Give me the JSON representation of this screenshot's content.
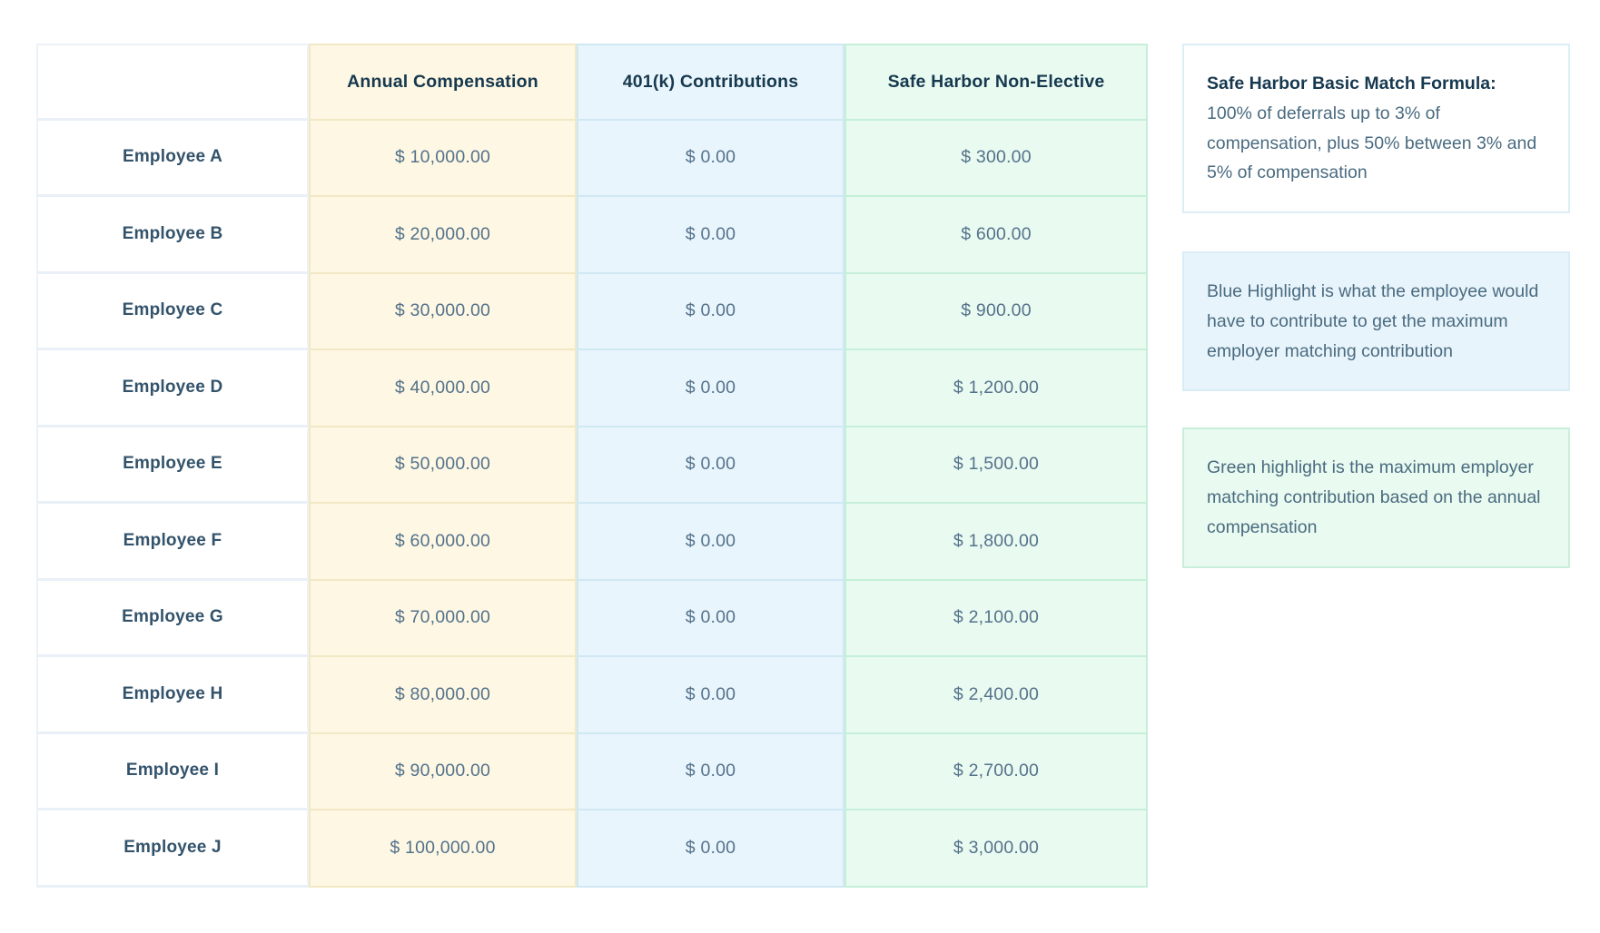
{
  "table": {
    "columns": [
      {
        "label": ""
      },
      {
        "label": "Annual Compensation"
      },
      {
        "label": "401(k) Contributions"
      },
      {
        "label": "Safe Harbor Non-Elective"
      }
    ],
    "rows": [
      {
        "name": "Employee A",
        "annual_compensation": "$ 10,000.00",
        "contributions_401k": "$ 0.00",
        "safe_harbor": "$ 300.00"
      },
      {
        "name": "Employee B",
        "annual_compensation": "$ 20,000.00",
        "contributions_401k": "$ 0.00",
        "safe_harbor": "$ 600.00"
      },
      {
        "name": "Employee C",
        "annual_compensation": "$ 30,000.00",
        "contributions_401k": "$ 0.00",
        "safe_harbor": "$ 900.00"
      },
      {
        "name": "Employee D",
        "annual_compensation": "$ 40,000.00",
        "contributions_401k": "$ 0.00",
        "safe_harbor": "$ 1,200.00"
      },
      {
        "name": "Employee E",
        "annual_compensation": "$ 50,000.00",
        "contributions_401k": "$ 0.00",
        "safe_harbor": "$ 1,500.00"
      },
      {
        "name": "Employee F",
        "annual_compensation": "$ 60,000.00",
        "contributions_401k": "$ 0.00",
        "safe_harbor": "$ 1,800.00"
      },
      {
        "name": "Employee G",
        "annual_compensation": "$ 70,000.00",
        "contributions_401k": "$ 0.00",
        "safe_harbor": "$ 2,100.00"
      },
      {
        "name": "Employee H",
        "annual_compensation": "$ 80,000.00",
        "contributions_401k": "$ 0.00",
        "safe_harbor": "$ 2,400.00"
      },
      {
        "name": "Employee I",
        "annual_compensation": "$ 90,000.00",
        "contributions_401k": "$ 0.00",
        "safe_harbor": "$ 2,700.00"
      },
      {
        "name": "Employee J",
        "annual_compensation": "$ 100,000.00",
        "contributions_401k": "$ 0.00",
        "safe_harbor": "$ 3,000.00"
      }
    ]
  },
  "panels": {
    "formula": {
      "title": "Safe Harbor Basic Match Formula:",
      "body": "100% of deferrals up to 3% of compensation, plus 50% between 3% and 5% of compensation"
    },
    "blue_note": {
      "body": "Blue Highlight is what the employee would have to contribute to get the maximum employer matching contribution"
    },
    "green_note": {
      "body": "Green highlight is the maximum employer matching contribution based on the annual compensation"
    }
  },
  "colors": {
    "yellow_highlight": "#FDF7E3",
    "blue_highlight": "#E9F5FC",
    "green_highlight": "#E9FAF0",
    "header_text": "#17394F",
    "value_text": "#54728B"
  }
}
